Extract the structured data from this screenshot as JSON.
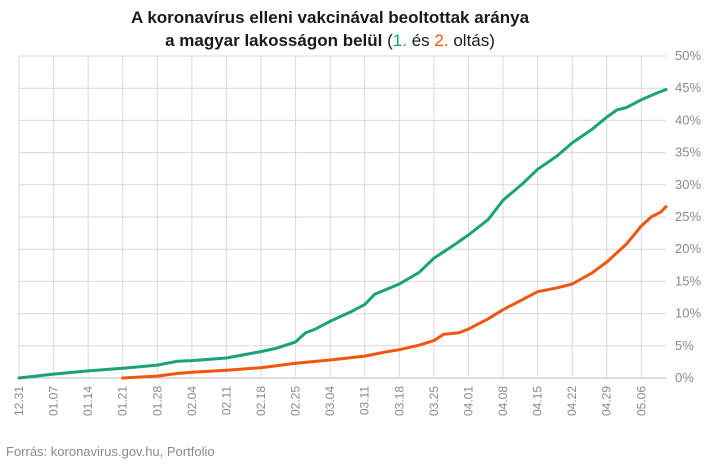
{
  "title": {
    "line1": "A koronavírus elleni vakcinával beoltottak aránya",
    "line2": "a magyar lakosságon belül",
    "open_paren": "(",
    "dose1": "1.",
    "and": "és",
    "dose2": "2.",
    "close": "oltás)"
  },
  "source": "Forrás: koronavirus.gov.hu, Portfolio",
  "colors": {
    "dose1": "#1aa27a",
    "dose2": "#f0560f",
    "grid": "#d9d9d9",
    "text": "#8a8a8a"
  },
  "chart_data": {
    "type": "line",
    "x_start": "12.31",
    "x_end": "05.11",
    "xticks": [
      "12.31",
      "01.07",
      "01.14",
      "01.21",
      "01.28",
      "02.04",
      "02.11",
      "02.18",
      "02.25",
      "03.04",
      "03.11",
      "03.18",
      "03.25",
      "04.01",
      "04.08",
      "04.15",
      "04.22",
      "04.29",
      "05.06"
    ],
    "yticks": [
      "0%",
      "5%",
      "10%",
      "15%",
      "20%",
      "25%",
      "30%",
      "35%",
      "40%",
      "45%",
      "50%"
    ],
    "ylim": [
      0,
      50
    ],
    "y_unit": "%",
    "grid": true,
    "series": [
      {
        "color": "#1aa27a",
        "points": [
          [
            "12.31",
            0
          ],
          [
            "01.07",
            0.6
          ],
          [
            "01.14",
            1.1
          ],
          [
            "01.21",
            1.5
          ],
          [
            "01.28",
            2.0
          ],
          [
            "02.01",
            2.6
          ],
          [
            "02.04",
            2.7
          ],
          [
            "02.11",
            3.1
          ],
          [
            "02.18",
            4.1
          ],
          [
            "02.21",
            4.6
          ],
          [
            "02.25",
            5.6
          ],
          [
            "02.27",
            7.0
          ],
          [
            "03.01",
            7.6
          ],
          [
            "03.04",
            8.8
          ],
          [
            "03.08",
            10.2
          ],
          [
            "03.11",
            11.4
          ],
          [
            "03.13",
            13.0
          ],
          [
            "03.18",
            14.6
          ],
          [
            "03.22",
            16.4
          ],
          [
            "03.25",
            18.6
          ],
          [
            "03.29",
            20.6
          ],
          [
            "04.01",
            22.2
          ],
          [
            "04.05",
            24.6
          ],
          [
            "04.08",
            27.6
          ],
          [
            "04.12",
            30.2
          ],
          [
            "04.15",
            32.4
          ],
          [
            "04.19",
            34.5
          ],
          [
            "04.22",
            36.5
          ],
          [
            "04.26",
            38.6
          ],
          [
            "04.29",
            40.5
          ],
          [
            "05.01",
            41.6
          ],
          [
            "05.03",
            42.0
          ],
          [
            "05.06",
            43.2
          ],
          [
            "05.09",
            44.2
          ],
          [
            "05.11",
            44.8
          ]
        ]
      },
      {
        "color": "#f0560f",
        "points": [
          [
            "01.21",
            0
          ],
          [
            "01.28",
            0.3
          ],
          [
            "02.01",
            0.7
          ],
          [
            "02.04",
            0.9
          ],
          [
            "02.11",
            1.2
          ],
          [
            "02.18",
            1.6
          ],
          [
            "02.25",
            2.3
          ],
          [
            "03.04",
            2.8
          ],
          [
            "03.11",
            3.4
          ],
          [
            "03.15",
            4.0
          ],
          [
            "03.18",
            4.4
          ],
          [
            "03.22",
            5.1
          ],
          [
            "03.25",
            5.8
          ],
          [
            "03.27",
            6.8
          ],
          [
            "03.30",
            7.0
          ],
          [
            "04.01",
            7.6
          ],
          [
            "04.05",
            9.2
          ],
          [
            "04.08",
            10.6
          ],
          [
            "04.12",
            12.2
          ],
          [
            "04.15",
            13.4
          ],
          [
            "04.19",
            14.0
          ],
          [
            "04.22",
            14.6
          ],
          [
            "04.26",
            16.3
          ],
          [
            "04.29",
            18.0
          ],
          [
            "05.03",
            20.8
          ],
          [
            "05.06",
            23.6
          ],
          [
            "05.08",
            25.0
          ],
          [
            "05.10",
            25.8
          ],
          [
            "05.11",
            26.6
          ]
        ]
      }
    ]
  }
}
